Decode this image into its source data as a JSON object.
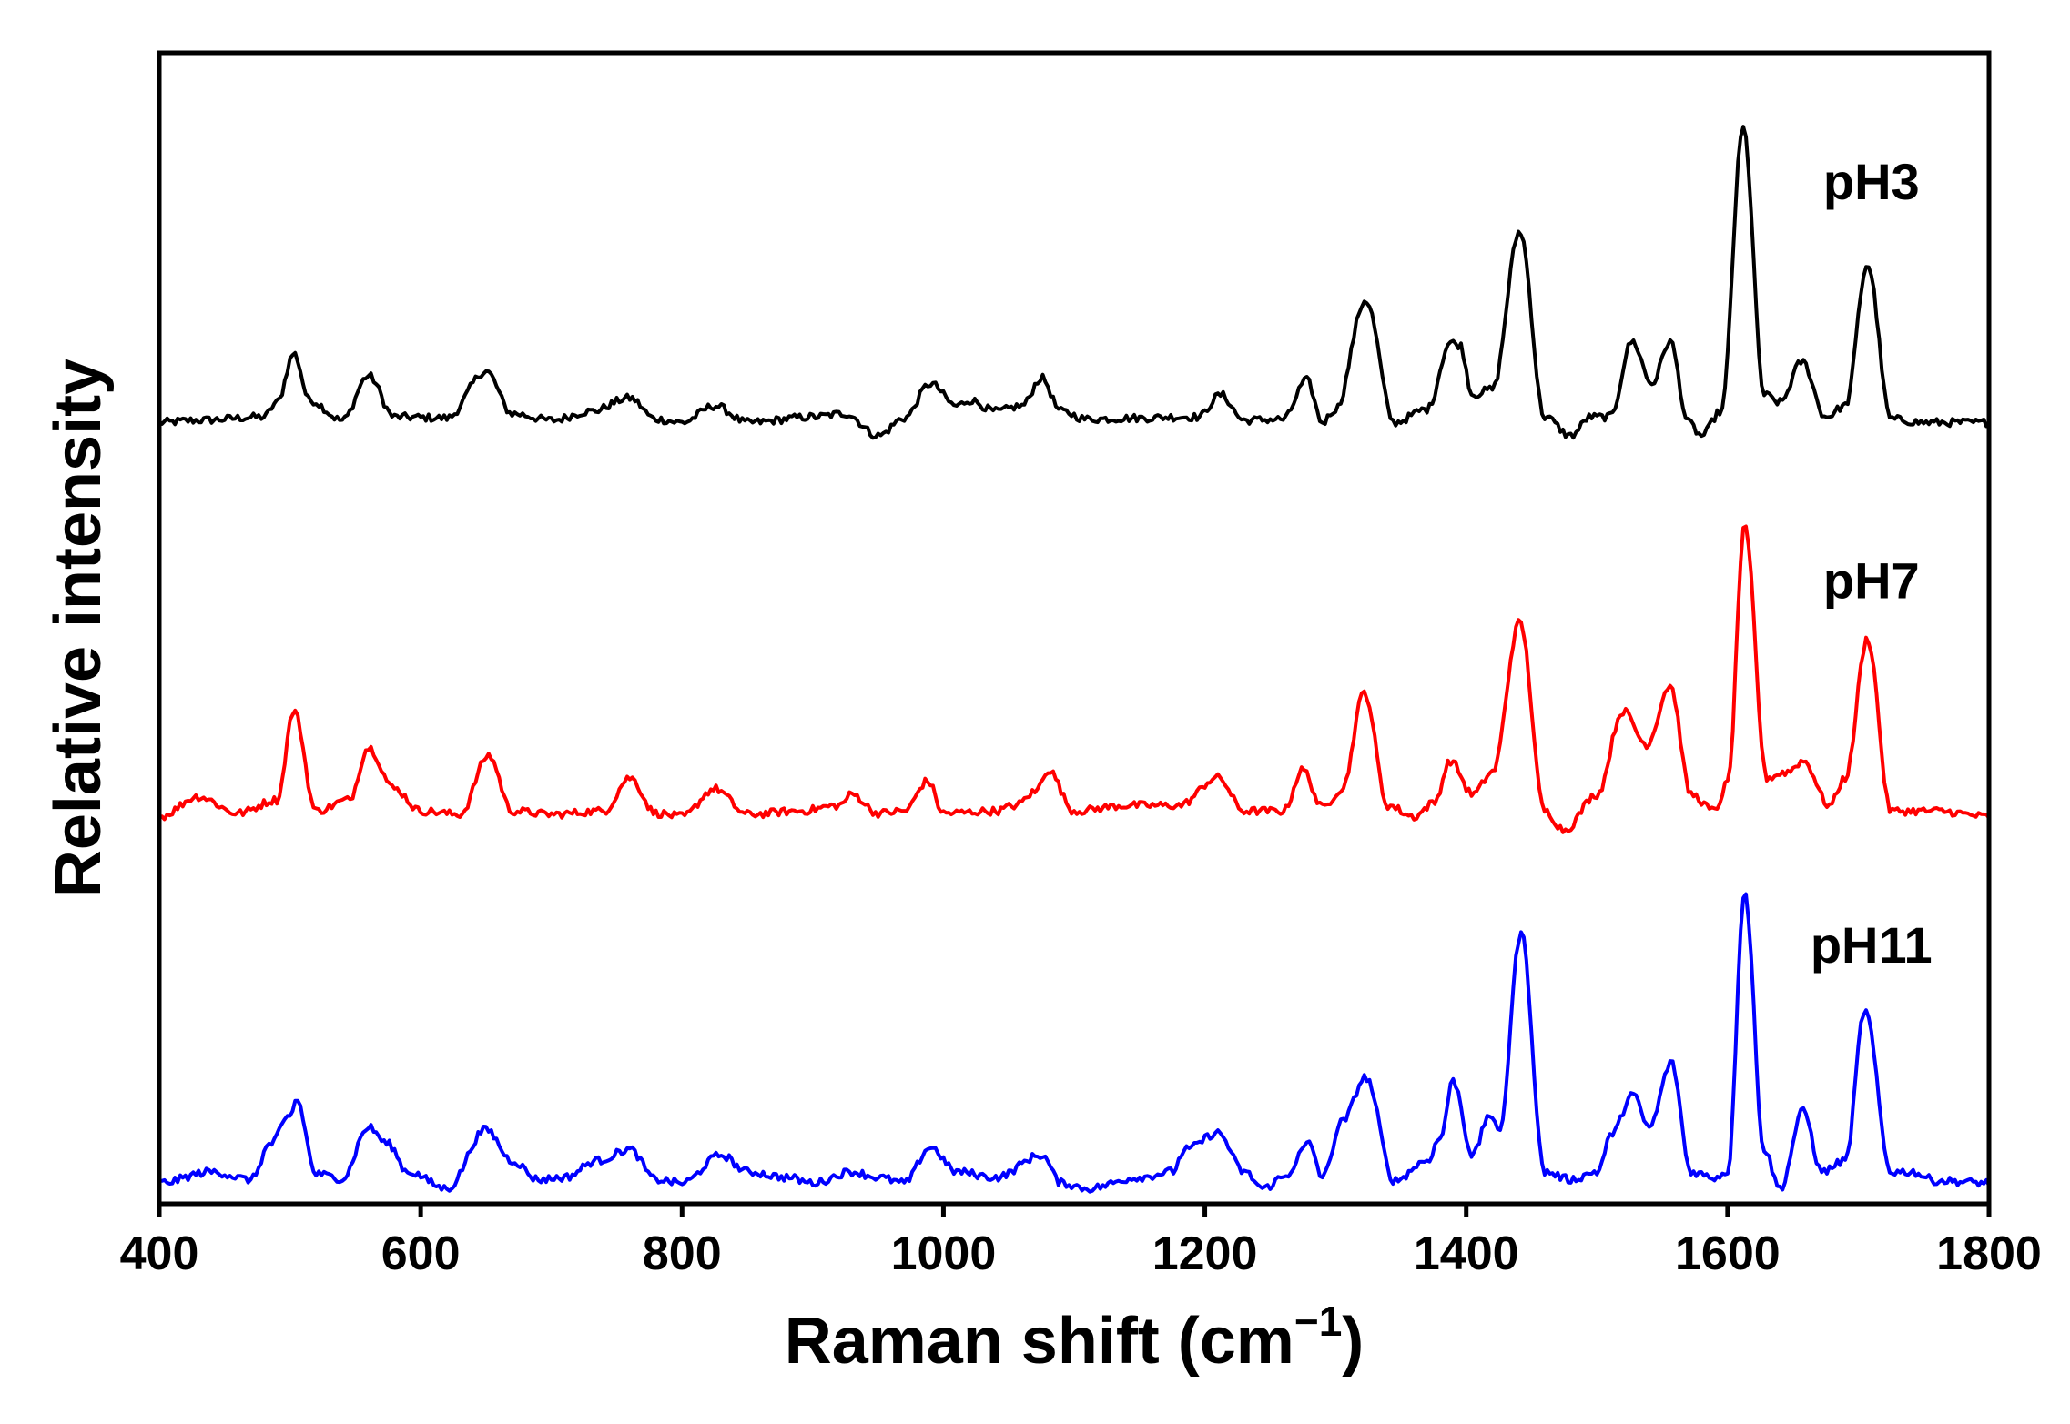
{
  "chart_data": {
    "type": "line",
    "title": "",
    "xlabel": "Raman shift (cm",
    "xlabel_sup": "−1",
    "xlabel_close": ")",
    "ylabel": "Relative intensity",
    "xlim": [
      400,
      1800
    ],
    "ylim": [
      0,
      10
    ],
    "xticks": [
      400,
      600,
      800,
      1000,
      1200,
      1400,
      1600,
      1800
    ],
    "yticks_shown": false,
    "grid": false,
    "legend": "inline labels at right",
    "series": [
      {
        "name": "pH3",
        "color": "#000000",
        "baseline": 6.85,
        "scale": 1.0,
        "points": [
          [
            400,
            0.0
          ],
          [
            430,
            0.02
          ],
          [
            480,
            0.05
          ],
          [
            490,
            0.18
          ],
          [
            503,
            0.62
          ],
          [
            515,
            0.2
          ],
          [
            540,
            0.02
          ],
          [
            560,
            0.42
          ],
          [
            580,
            0.05
          ],
          [
            620,
            0.04
          ],
          [
            650,
            0.46
          ],
          [
            670,
            0.08
          ],
          [
            700,
            0.02
          ],
          [
            730,
            0.1
          ],
          [
            760,
            0.22
          ],
          [
            780,
            0.03
          ],
          [
            800,
            0.0
          ],
          [
            825,
            0.15
          ],
          [
            850,
            0.0
          ],
          [
            900,
            0.05
          ],
          [
            925,
            0.08
          ],
          [
            950,
            -0.12
          ],
          [
            970,
            0.04
          ],
          [
            990,
            0.35
          ],
          [
            1010,
            0.15
          ],
          [
            1020,
            0.2
          ],
          [
            1040,
            0.1
          ],
          [
            1060,
            0.15
          ],
          [
            1075,
            0.4
          ],
          [
            1090,
            0.1
          ],
          [
            1110,
            0.03
          ],
          [
            1150,
            0.04
          ],
          [
            1180,
            0.05
          ],
          [
            1195,
            0.05
          ],
          [
            1212,
            0.25
          ],
          [
            1230,
            0.02
          ],
          [
            1260,
            0.03
          ],
          [
            1278,
            0.38
          ],
          [
            1290,
            0.0
          ],
          [
            1300,
            0.12
          ],
          [
            1323,
            1.1
          ],
          [
            1345,
            0.0
          ],
          [
            1370,
            0.12
          ],
          [
            1388,
            0.72
          ],
          [
            1395,
            0.7
          ],
          [
            1405,
            0.25
          ],
          [
            1420,
            0.3
          ],
          [
            1441,
            1.72
          ],
          [
            1460,
            0.05
          ],
          [
            1480,
            -0.12
          ],
          [
            1495,
            0.05
          ],
          [
            1510,
            0.05
          ],
          [
            1527,
            0.73
          ],
          [
            1542,
            0.35
          ],
          [
            1556,
            0.73
          ],
          [
            1570,
            0.0
          ],
          [
            1580,
            -0.12
          ],
          [
            1595,
            0.1
          ],
          [
            1612,
            2.65
          ],
          [
            1628,
            0.25
          ],
          [
            1640,
            0.18
          ],
          [
            1657,
            0.55
          ],
          [
            1675,
            0.05
          ],
          [
            1690,
            0.15
          ],
          [
            1707,
            1.42
          ],
          [
            1725,
            0.03
          ],
          [
            1750,
            0.0
          ],
          [
            1800,
            0.0
          ]
        ]
      },
      {
        "name": "pH7",
        "color": "#ff0000",
        "baseline": 3.3,
        "scale": 1.0,
        "points": [
          [
            400,
            0.0
          ],
          [
            430,
            0.18
          ],
          [
            460,
            0.03
          ],
          [
            490,
            0.15
          ],
          [
            503,
            0.95
          ],
          [
            520,
            0.05
          ],
          [
            545,
            0.15
          ],
          [
            560,
            0.62
          ],
          [
            580,
            0.25
          ],
          [
            600,
            0.05
          ],
          [
            630,
            0.02
          ],
          [
            652,
            0.55
          ],
          [
            670,
            0.05
          ],
          [
            700,
            0.02
          ],
          [
            740,
            0.05
          ],
          [
            760,
            0.35
          ],
          [
            780,
            0.03
          ],
          [
            800,
            0.0
          ],
          [
            825,
            0.25
          ],
          [
            850,
            0.02
          ],
          [
            890,
            0.05
          ],
          [
            920,
            0.1
          ],
          [
            930,
            0.2
          ],
          [
            950,
            0.03
          ],
          [
            970,
            0.05
          ],
          [
            988,
            0.32
          ],
          [
            1000,
            0.03
          ],
          [
            1040,
            0.05
          ],
          [
            1055,
            0.1
          ],
          [
            1070,
            0.22
          ],
          [
            1080,
            0.42
          ],
          [
            1100,
            0.05
          ],
          [
            1140,
            0.1
          ],
          [
            1180,
            0.1
          ],
          [
            1210,
            0.35
          ],
          [
            1230,
            0.05
          ],
          [
            1260,
            0.05
          ],
          [
            1275,
            0.42
          ],
          [
            1290,
            0.08
          ],
          [
            1305,
            0.25
          ],
          [
            1322,
            1.12
          ],
          [
            1340,
            0.1
          ],
          [
            1360,
            0.0
          ],
          [
            1375,
            0.12
          ],
          [
            1388,
            0.5
          ],
          [
            1405,
            0.2
          ],
          [
            1420,
            0.4
          ],
          [
            1441,
            1.75
          ],
          [
            1460,
            0.05
          ],
          [
            1475,
            -0.12
          ],
          [
            1500,
            0.2
          ],
          [
            1520,
            0.95
          ],
          [
            1538,
            0.65
          ],
          [
            1556,
            1.18
          ],
          [
            1572,
            0.2
          ],
          [
            1590,
            0.05
          ],
          [
            1600,
            0.3
          ],
          [
            1613,
            2.6
          ],
          [
            1630,
            0.35
          ],
          [
            1645,
            0.4
          ],
          [
            1658,
            0.5
          ],
          [
            1678,
            0.1
          ],
          [
            1690,
            0.35
          ],
          [
            1707,
            1.6
          ],
          [
            1725,
            0.05
          ],
          [
            1760,
            0.05
          ],
          [
            1800,
            0.0
          ]
        ]
      },
      {
        "name": "pH11",
        "color": "#0000ff",
        "baseline": 0.0,
        "scale": 1.0,
        "points": [
          [
            400,
            0.0
          ],
          [
            440,
            0.1
          ],
          [
            470,
            0.03
          ],
          [
            485,
            0.35
          ],
          [
            500,
            0.6
          ],
          [
            505,
            0.75
          ],
          [
            520,
            0.08
          ],
          [
            540,
            0.04
          ],
          [
            560,
            0.5
          ],
          [
            575,
            0.35
          ],
          [
            590,
            0.1
          ],
          [
            620,
            -0.05
          ],
          [
            650,
            0.48
          ],
          [
            670,
            0.2
          ],
          [
            690,
            0.03
          ],
          [
            710,
            0.05
          ],
          [
            735,
            0.2
          ],
          [
            760,
            0.3
          ],
          [
            780,
            0.03
          ],
          [
            800,
            0.0
          ],
          [
            830,
            0.25
          ],
          [
            850,
            0.1
          ],
          [
            880,
            0.05
          ],
          [
            900,
            0.0
          ],
          [
            930,
            0.1
          ],
          [
            950,
            0.05
          ],
          [
            970,
            0.0
          ],
          [
            990,
            0.32
          ],
          [
            1010,
            0.1
          ],
          [
            1040,
            0.05
          ],
          [
            1075,
            0.25
          ],
          [
            1090,
            0.0
          ],
          [
            1110,
            -0.05
          ],
          [
            1150,
            0.05
          ],
          [
            1175,
            0.1
          ],
          [
            1185,
            0.3
          ],
          [
            1210,
            0.45
          ],
          [
            1230,
            0.1
          ],
          [
            1245,
            -0.05
          ],
          [
            1260,
            0.05
          ],
          [
            1280,
            0.35
          ],
          [
            1290,
            0.05
          ],
          [
            1305,
            0.55
          ],
          [
            1323,
            0.95
          ],
          [
            1345,
            0.02
          ],
          [
            1370,
            0.2
          ],
          [
            1380,
            0.4
          ],
          [
            1390,
            0.92
          ],
          [
            1405,
            0.25
          ],
          [
            1418,
            0.62
          ],
          [
            1425,
            0.45
          ],
          [
            1442,
            2.25
          ],
          [
            1460,
            0.1
          ],
          [
            1480,
            0.03
          ],
          [
            1500,
            0.1
          ],
          [
            1512,
            0.45
          ],
          [
            1527,
            0.8
          ],
          [
            1540,
            0.5
          ],
          [
            1557,
            1.08
          ],
          [
            1572,
            0.1
          ],
          [
            1590,
            0.05
          ],
          [
            1600,
            0.1
          ],
          [
            1613,
            2.62
          ],
          [
            1628,
            0.3
          ],
          [
            1640,
            -0.05
          ],
          [
            1658,
            0.65
          ],
          [
            1672,
            0.1
          ],
          [
            1690,
            0.2
          ],
          [
            1705,
            1.55
          ],
          [
            1725,
            0.1
          ],
          [
            1740,
            0.1
          ],
          [
            1760,
            0.02
          ],
          [
            1800,
            0.0
          ]
        ]
      }
    ]
  }
}
